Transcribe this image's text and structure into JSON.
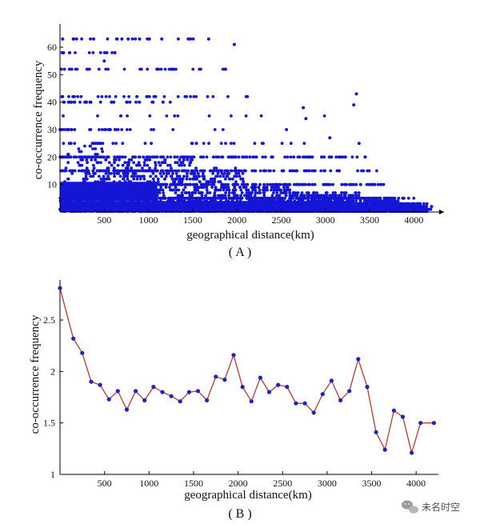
{
  "chart_data": [
    {
      "panel": "( A )",
      "type": "scatter",
      "xlabel": "geographical distance(km)",
      "ylabel": "co-occurrence frequency",
      "xlim": [
        0,
        4250
      ],
      "ylim": [
        0,
        67
      ],
      "xticks": [
        500,
        1000,
        1500,
        2000,
        2500,
        3000,
        3500,
        4000
      ],
      "yticks": [
        10,
        20,
        30,
        40,
        50,
        60
      ],
      "marker_color": "#1515d6",
      "grid": false,
      "levels": [
        {
          "y": 63,
          "x_range": [
            0,
            1750
          ],
          "density": "sparse"
        },
        {
          "y": 58,
          "x_range": [
            0,
            700
          ],
          "density": "sparse"
        },
        {
          "y": 52,
          "x_range": [
            0,
            1900
          ],
          "density": "medium"
        },
        {
          "y": 42,
          "x_range": [
            0,
            2150
          ],
          "density": "medium"
        },
        {
          "y": 40,
          "x_range": [
            0,
            1300
          ],
          "density": "medium"
        },
        {
          "y": 35,
          "x_range": [
            0,
            3400
          ],
          "density": "sparse"
        },
        {
          "y": 30,
          "x_range": [
            0,
            2000
          ],
          "density": "medium"
        },
        {
          "y": 25,
          "x_range": [
            0,
            2800
          ],
          "density": "medium"
        },
        {
          "y": 20,
          "x_range": [
            0,
            3500
          ],
          "density": "dense"
        },
        {
          "y": 15,
          "x_range": [
            0,
            3600
          ],
          "density": "dense"
        },
        {
          "y": 10,
          "x_range": [
            0,
            3700
          ],
          "density": "dense"
        },
        {
          "y": 5,
          "x_range": [
            0,
            4000
          ],
          "density": "very dense"
        },
        {
          "y": 1,
          "x_range": [
            0,
            4200
          ],
          "density": "very dense"
        }
      ],
      "points": [
        {
          "x": 30,
          "y": 63
        },
        {
          "x": 150,
          "y": 63
        },
        {
          "x": 380,
          "y": 63
        },
        {
          "x": 640,
          "y": 63
        },
        {
          "x": 700,
          "y": 63
        },
        {
          "x": 770,
          "y": 63
        },
        {
          "x": 900,
          "y": 63
        },
        {
          "x": 1010,
          "y": 63
        },
        {
          "x": 1150,
          "y": 63
        },
        {
          "x": 1680,
          "y": 63
        },
        {
          "x": 1970,
          "y": 61
        },
        {
          "x": 40,
          "y": 58
        },
        {
          "x": 500,
          "y": 55
        },
        {
          "x": 620,
          "y": 58
        },
        {
          "x": 3350,
          "y": 43
        },
        {
          "x": 3320,
          "y": 39
        },
        {
          "x": 2750,
          "y": 38
        },
        {
          "x": 2780,
          "y": 34
        },
        {
          "x": 2560,
          "y": 30
        },
        {
          "x": 3050,
          "y": 27
        },
        {
          "x": 3380,
          "y": 25
        },
        {
          "x": 3450,
          "y": 20
        },
        {
          "x": 3820,
          "y": 4
        },
        {
          "x": 3950,
          "y": 3
        },
        {
          "x": 4050,
          "y": 1
        },
        {
          "x": 4130,
          "y": 1
        },
        {
          "x": 4200,
          "y": 2
        }
      ]
    },
    {
      "panel": "( B )",
      "type": "line",
      "xlabel": "geographical distance(km)",
      "ylabel": "co-occurrence frequency",
      "xlim": [
        0,
        4250
      ],
      "ylim": [
        1,
        2.85
      ],
      "xticks": [
        500,
        1000,
        1500,
        2000,
        2500,
        3000,
        3500,
        4000
      ],
      "yticks": [
        1,
        1.5,
        2,
        2.5
      ],
      "line_color": "#c0392b",
      "marker_color": "#2020c8",
      "grid": false,
      "x": [
        0,
        150,
        250,
        350,
        450,
        550,
        650,
        750,
        850,
        950,
        1050,
        1150,
        1250,
        1350,
        1450,
        1550,
        1650,
        1750,
        1850,
        1950,
        2050,
        2150,
        2250,
        2350,
        2450,
        2550,
        2650,
        2750,
        2850,
        2950,
        3050,
        3150,
        3250,
        3350,
        3450,
        3550,
        3650,
        3750,
        3850,
        3950,
        4050,
        4200
      ],
      "y": [
        2.81,
        2.32,
        2.18,
        1.9,
        1.87,
        1.73,
        1.81,
        1.63,
        1.81,
        1.72,
        1.85,
        1.8,
        1.76,
        1.71,
        1.8,
        1.81,
        1.72,
        1.95,
        1.92,
        2.16,
        1.85,
        1.71,
        1.94,
        1.8,
        1.87,
        1.85,
        1.69,
        1.69,
        1.6,
        1.78,
        1.91,
        1.72,
        1.81,
        2.12,
        1.85,
        1.41,
        1.24,
        1.62,
        1.56,
        1.21,
        1.5,
        1.5
      ]
    }
  ],
  "watermark": {
    "text": "未名时空",
    "icon": "wechat-icon"
  }
}
